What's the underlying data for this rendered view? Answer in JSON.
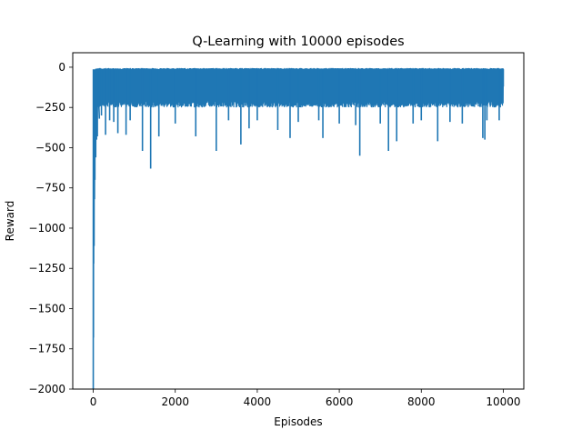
{
  "chart_data": {
    "type": "line",
    "title": "Q-Learning with 10000 episodes",
    "xlabel": "Episodes",
    "ylabel": "Reward",
    "xlim": [
      -500,
      10500
    ],
    "ylim": [
      -2000,
      90
    ],
    "xticks": [
      0,
      2000,
      4000,
      6000,
      8000,
      10000
    ],
    "xtick_labels": [
      "0",
      "2000",
      "4000",
      "6000",
      "8000",
      "10000"
    ],
    "yticks": [
      0,
      -250,
      -500,
      -750,
      -1000,
      -1250,
      -1500,
      -1750,
      -2000
    ],
    "ytick_labels": [
      "0",
      "−250",
      "−500",
      "−750",
      "−1000",
      "−1250",
      "−1500",
      "−1750",
      "−2000"
    ],
    "grid": false,
    "series": [
      {
        "color": "#1f77b4",
        "episodes": 10000,
        "upper_envelope": -13,
        "typical_lower_band": -230,
        "x": [
          0,
          5,
          10,
          20,
          30,
          40,
          60,
          80,
          100,
          150,
          200,
          300,
          400,
          500,
          600,
          800,
          900,
          1200,
          1400,
          1600,
          2000,
          2500,
          3000,
          3300,
          3600,
          3800,
          4000,
          4500,
          4800,
          5000,
          5500,
          5600,
          6000,
          6400,
          6500,
          7000,
          7200,
          7400,
          7800,
          8000,
          8400,
          8700,
          9000,
          9500,
          9550,
          9600,
          9900,
          10000
        ],
        "y": [
          -2000,
          -1680,
          -1220,
          -1110,
          -820,
          -700,
          -560,
          -450,
          -430,
          -320,
          -300,
          -420,
          -330,
          -340,
          -410,
          -420,
          -330,
          -520,
          -630,
          -430,
          -350,
          -430,
          -520,
          -330,
          -480,
          -380,
          -330,
          -390,
          -440,
          -340,
          -330,
          -440,
          -350,
          -360,
          -550,
          -350,
          -520,
          -460,
          -350,
          -330,
          -460,
          -340,
          -350,
          -440,
          -450,
          -330,
          -330,
          -120
        ]
      }
    ]
  }
}
